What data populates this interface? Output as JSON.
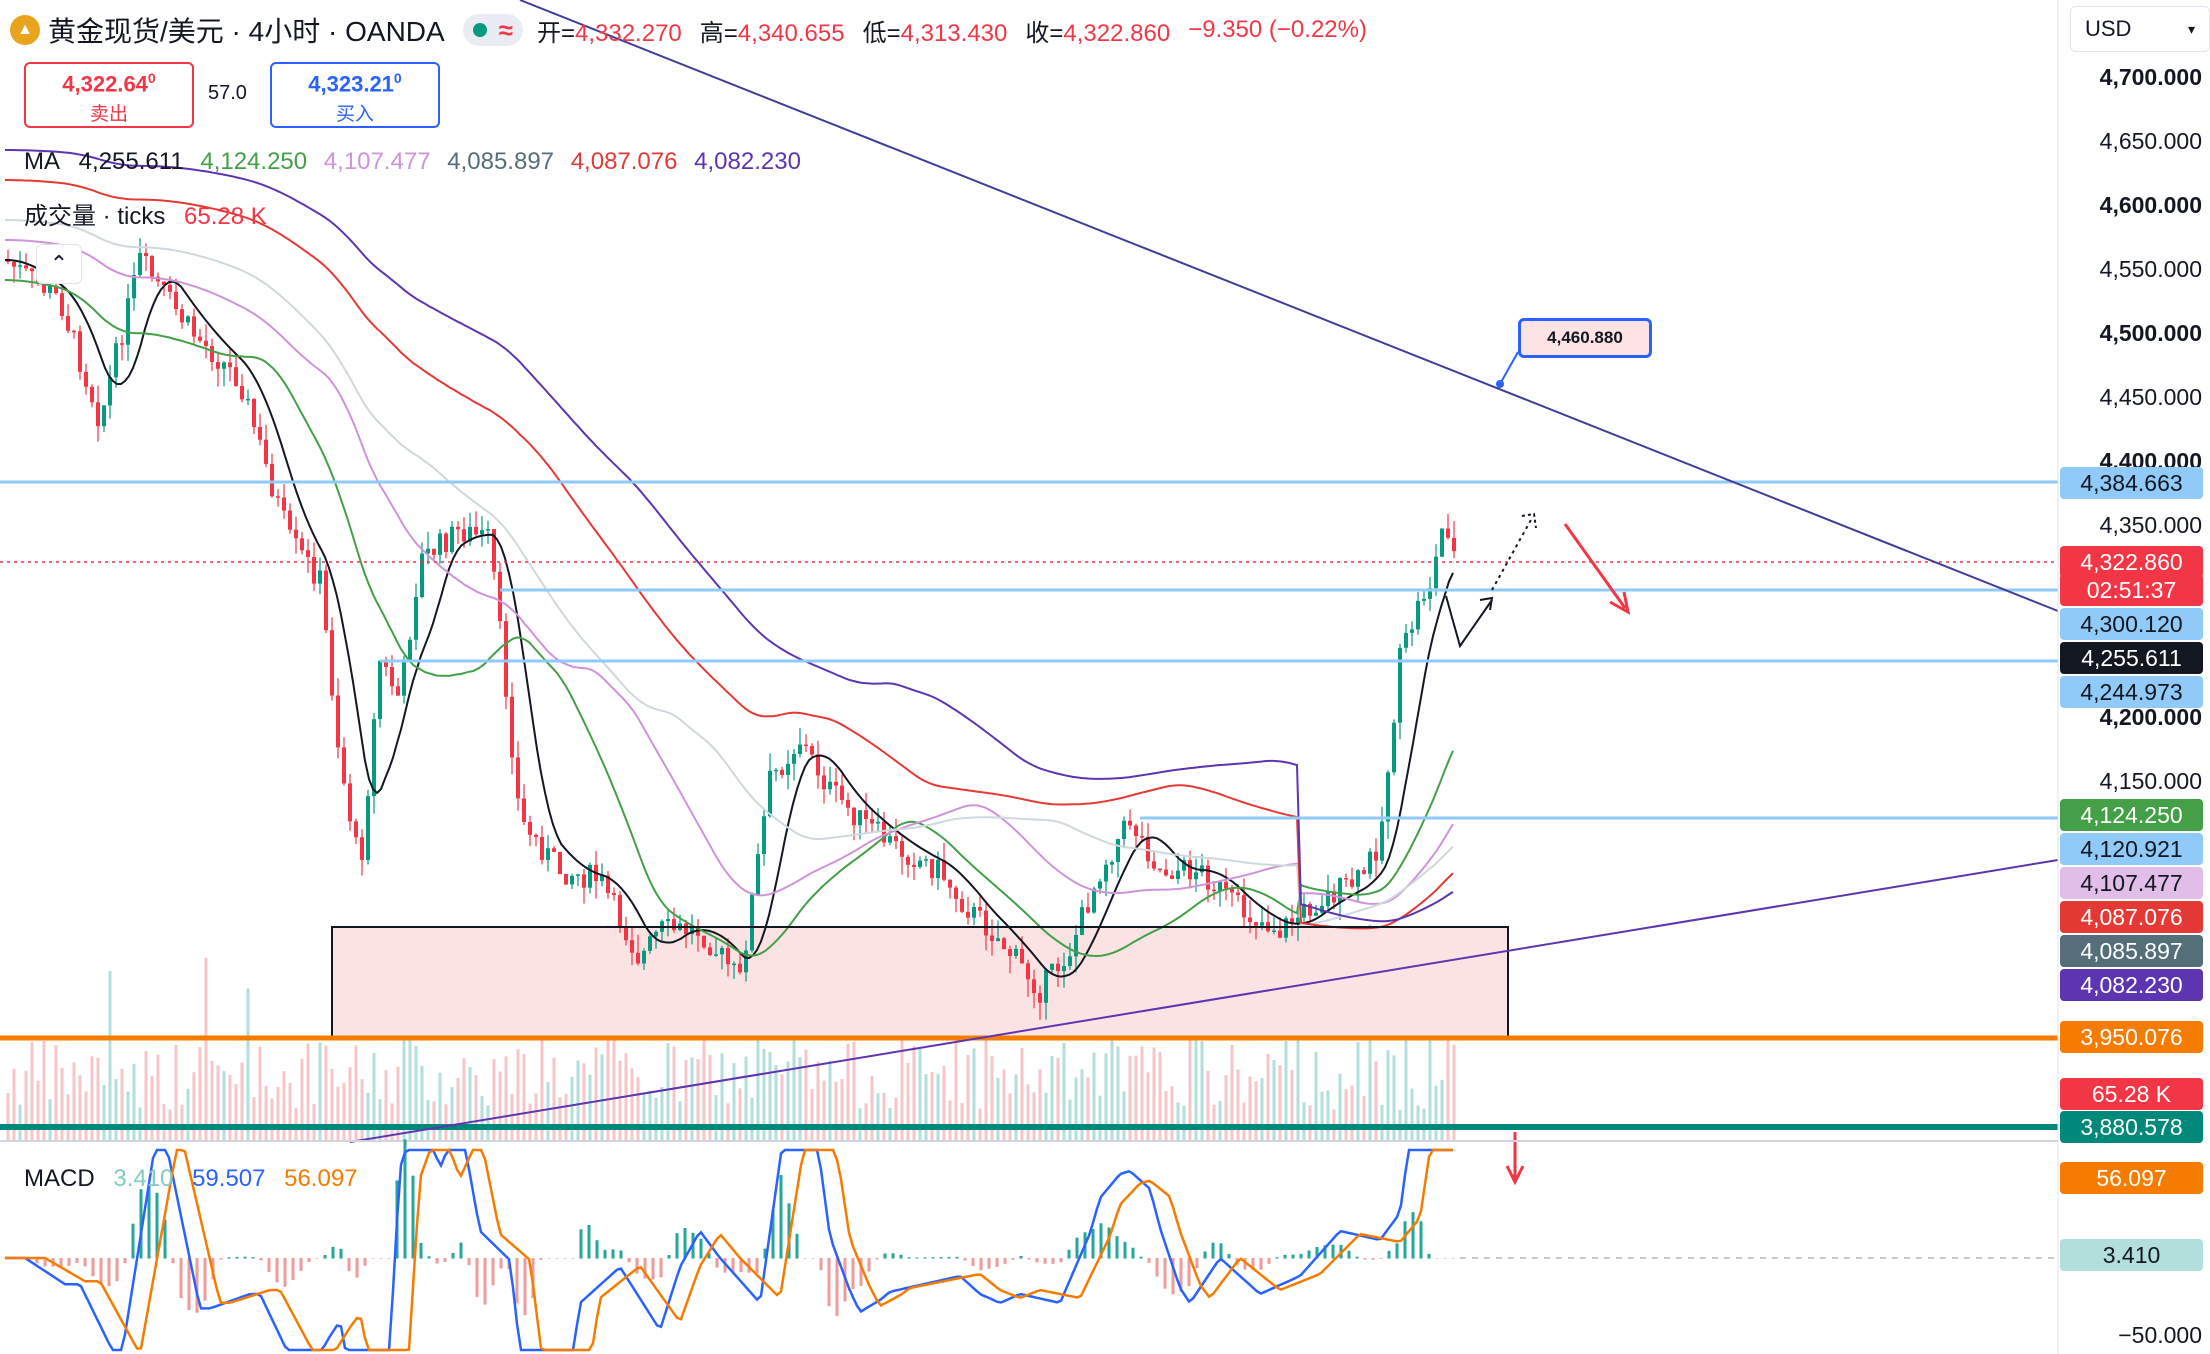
{
  "header": {
    "symbol": "黄金现货/美元 · 4小时 · OANDA",
    "open_label": "开=",
    "open": "4,332.270",
    "high_label": "高=",
    "high": "4,340.655",
    "low_label": "低=",
    "low": "4,313.430",
    "close_label": "收=",
    "close": "4,322.860",
    "change": "−9.350 (−0.22%)",
    "currency": "USD"
  },
  "trade": {
    "sell_price": "4,322.64",
    "sell_sup": "0",
    "sell_label": "卖出",
    "spread": "57.0",
    "buy_price": "4,323.21",
    "buy_sup": "0",
    "buy_label": "买入"
  },
  "ma": {
    "label": "MA",
    "values": [
      "4,255.611",
      "4,124.250",
      "4,107.477",
      "4,085.897",
      "4,087.076",
      "4,082.230"
    ],
    "colors": [
      "#131722",
      "#43a047",
      "#ce93d8",
      "#546e7a",
      "#e53935",
      "#5e35b1"
    ]
  },
  "volume": {
    "label": "成交量 · ticks",
    "value": "65.28 K"
  },
  "macd": {
    "label": "MACD",
    "hist": "3.410",
    "macd": "59.507",
    "signal": "56.097"
  },
  "callout": {
    "text": "4,460.880"
  },
  "price_axis": [
    "4,700.000",
    "4,650.000",
    "4,600.000",
    "4,550.000",
    "4,500.000",
    "4,450.000",
    "4,400.000",
    "4,350.000",
    "4,200.000",
    "4,150.000",
    "−50.000"
  ],
  "price_tags": {
    "resistance": "4,384.663",
    "last": "4,322.860",
    "countdown": "02:51:37",
    "level_4300": "4,300.120",
    "ma1": "4,255.611",
    "level_4244": "4,244.973",
    "ma2": "4,124.250",
    "level_4120": "4,120.921",
    "ma3": "4,107.477",
    "ma5": "4,087.076",
    "ma4": "4,085.897",
    "ma6": "4,082.230",
    "support_orange": "3,950.076",
    "vol": "65.28 K",
    "support_teal": "3,880.578",
    "macd_sig": "56.097",
    "macd_hist": "3.410"
  },
  "colors": {
    "up": "#089981",
    "down": "#f23645",
    "orange": "#f57c00",
    "teal": "#00897b",
    "hline": "#90caf9",
    "trend": "#3f3d99"
  }
}
